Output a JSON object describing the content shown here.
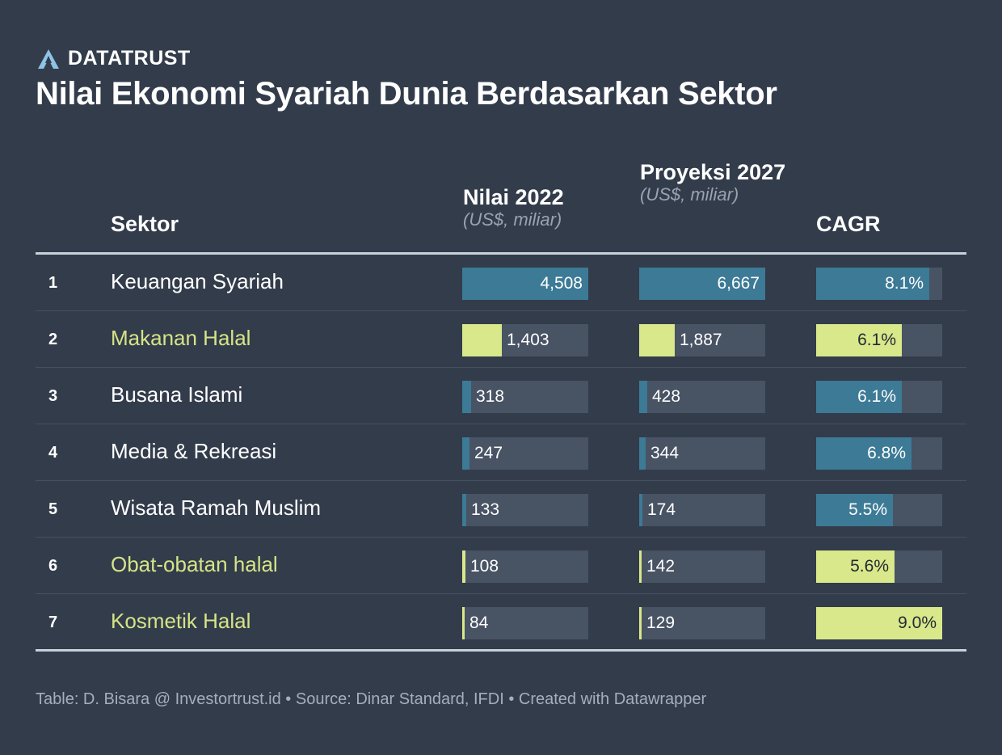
{
  "brand": {
    "name": "DATATRUST"
  },
  "title": "Nilai Ekonomi Syariah Dunia Berdasarkan Sektor",
  "columns": {
    "sektor": "Sektor",
    "nilai2022": "Nilai 2022",
    "nilai2022_unit": "(US$, miliar)",
    "proyeksi": "Proyeksi 2027",
    "proyeksi_unit": "(US$, miliar)",
    "cagr": "CAGR"
  },
  "colors": {
    "blue": "#3c7a96",
    "green": "#d8e88a",
    "green_text": "#d5e486",
    "track": "#485364",
    "background": "#333c4b"
  },
  "chart_data": {
    "type": "table",
    "rows": [
      {
        "rank": "1",
        "sector": "Keuangan Syariah",
        "nilai2022": 4508,
        "nilai2022_label": "4,508",
        "proyeksi2027": 6667,
        "proyeksi2027_label": "6,667",
        "cagr": 8.1,
        "cagr_label": "8.1%",
        "color": "blue"
      },
      {
        "rank": "2",
        "sector": "Makanan Halal",
        "nilai2022": 1403,
        "nilai2022_label": "1,403",
        "proyeksi2027": 1887,
        "proyeksi2027_label": "1,887",
        "cagr": 6.1,
        "cagr_label": "6.1%",
        "color": "green"
      },
      {
        "rank": "3",
        "sector": "Busana Islami",
        "nilai2022": 318,
        "nilai2022_label": "318",
        "proyeksi2027": 428,
        "proyeksi2027_label": "428",
        "cagr": 6.1,
        "cagr_label": "6.1%",
        "color": "blue"
      },
      {
        "rank": "4",
        "sector": "Media & Rekreasi",
        "nilai2022": 247,
        "nilai2022_label": "247",
        "proyeksi2027": 344,
        "proyeksi2027_label": "344",
        "cagr": 6.8,
        "cagr_label": "6.8%",
        "color": "blue"
      },
      {
        "rank": "5",
        "sector": "Wisata Ramah Muslim",
        "nilai2022": 133,
        "nilai2022_label": "133",
        "proyeksi2027": 174,
        "proyeksi2027_label": "174",
        "cagr": 5.5,
        "cagr_label": "5.5%",
        "color": "blue"
      },
      {
        "rank": "6",
        "sector": "Obat-obatan halal",
        "nilai2022": 108,
        "nilai2022_label": "108",
        "proyeksi2027": 142,
        "proyeksi2027_label": "142",
        "cagr": 5.6,
        "cagr_label": "5.6%",
        "color": "green"
      },
      {
        "rank": "7",
        "sector": "Kosmetik Halal",
        "nilai2022": 84,
        "nilai2022_label": "84",
        "proyeksi2027": 129,
        "proyeksi2027_label": "129",
        "cagr": 9.0,
        "cagr_label": "9.0%",
        "color": "green"
      }
    ]
  },
  "footer": "Table: D. Bisara @ Investortrust.id • Source: Dinar Standard, IFDI • Created with Datawrapper"
}
